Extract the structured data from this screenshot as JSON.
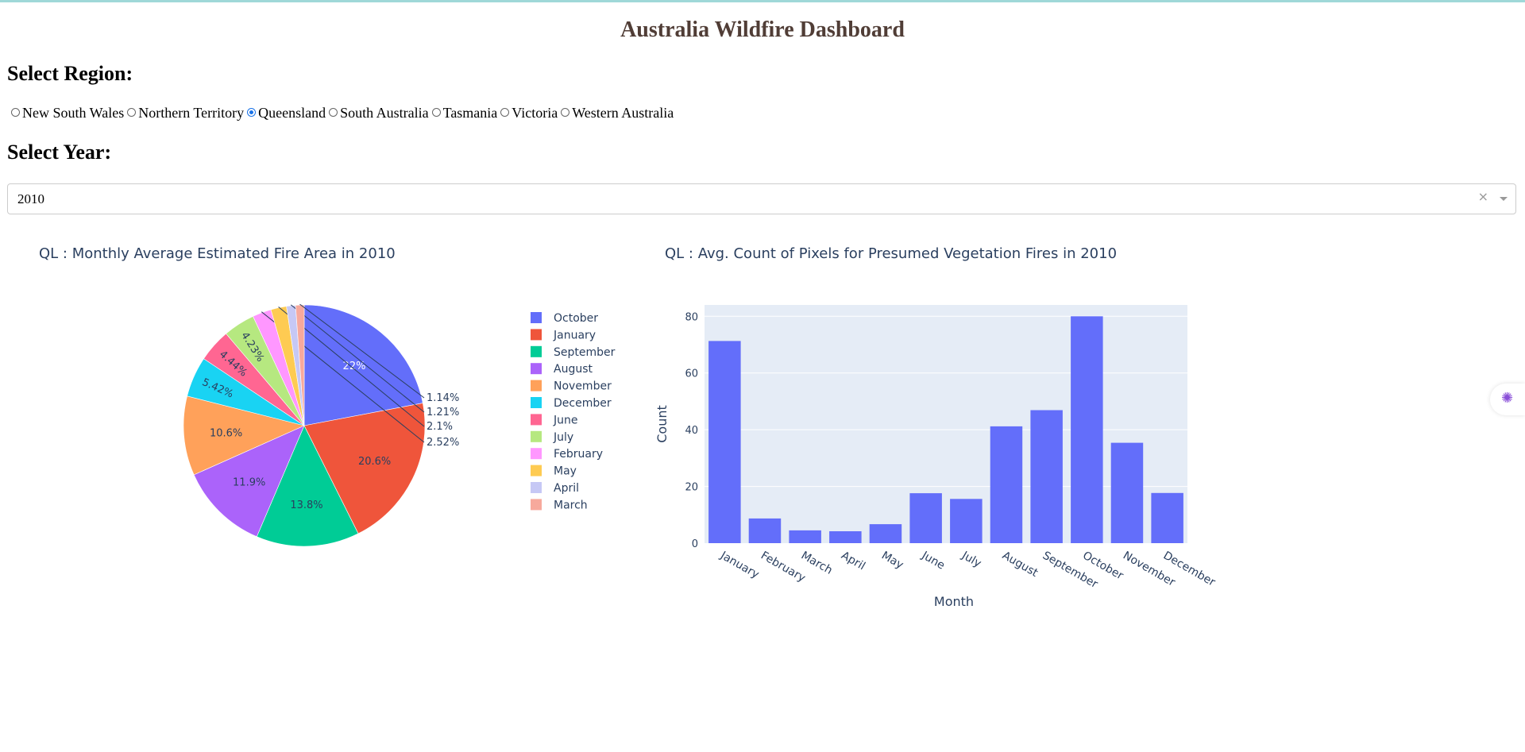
{
  "page": {
    "title": "Australia Wildfire Dashboard",
    "region_label": "Select Region:",
    "year_label": "Select Year:"
  },
  "regions": [
    {
      "label": "New South Wales",
      "selected": false
    },
    {
      "label": "Northern Territory",
      "selected": false
    },
    {
      "label": "Queensland",
      "selected": true
    },
    {
      "label": "South Australia",
      "selected": false
    },
    {
      "label": "Tasmania",
      "selected": false
    },
    {
      "label": "Victoria",
      "selected": false
    },
    {
      "label": "Western Australia",
      "selected": false
    }
  ],
  "year_dropdown": {
    "value": "2010",
    "clear_icon": "×"
  },
  "side_button": {
    "icon": "brain-icon"
  },
  "chart_data": [
    {
      "type": "pie",
      "title": "QL : Monthly Average Estimated Fire Area in 2010",
      "slices": [
        {
          "label": "October",
          "percent": 22.0,
          "text": "22%",
          "color": "#636efa"
        },
        {
          "label": "January",
          "percent": 20.6,
          "text": "20.6%",
          "color": "#EF553B"
        },
        {
          "label": "September",
          "percent": 13.8,
          "text": "13.8%",
          "color": "#00cc96"
        },
        {
          "label": "August",
          "percent": 11.9,
          "text": "11.9%",
          "color": "#ab63fa"
        },
        {
          "label": "November",
          "percent": 10.6,
          "text": "10.6%",
          "color": "#FFA15A"
        },
        {
          "label": "December",
          "percent": 5.42,
          "text": "5.42%",
          "color": "#19d3f3"
        },
        {
          "label": "June",
          "percent": 4.44,
          "text": "4.44%",
          "color": "#FF6692"
        },
        {
          "label": "July",
          "percent": 4.23,
          "text": "4.23%",
          "color": "#B6E880"
        },
        {
          "label": "February",
          "percent": 2.52,
          "text": "2.52%",
          "color": "#FF97FF"
        },
        {
          "label": "May",
          "percent": 2.1,
          "text": "2.1%",
          "color": "#FECB52"
        },
        {
          "label": "April",
          "percent": 1.21,
          "text": "1.21%",
          "color": "#c6c8f5"
        },
        {
          "label": "March",
          "percent": 1.14,
          "text": "1.14%",
          "color": "#f7a99c"
        }
      ]
    },
    {
      "type": "bar",
      "title": "QL : Avg. Count of Pixels for Presumed Vegetation Fires in 2010",
      "xlabel": "Month",
      "ylabel": "Count",
      "categories": [
        "January",
        "February",
        "March",
        "April",
        "May",
        "June",
        "July",
        "August",
        "September",
        "October",
        "November",
        "December"
      ],
      "values": [
        71.3,
        8.7,
        4.5,
        4.2,
        6.7,
        17.6,
        15.6,
        41.2,
        46.9,
        80.0,
        35.4,
        17.7
      ],
      "ylim": [
        0,
        84
      ],
      "yticks": [
        0,
        20,
        40,
        60,
        80
      ],
      "color": "#636efa",
      "plot_bg": "#e5ecf6"
    }
  ]
}
